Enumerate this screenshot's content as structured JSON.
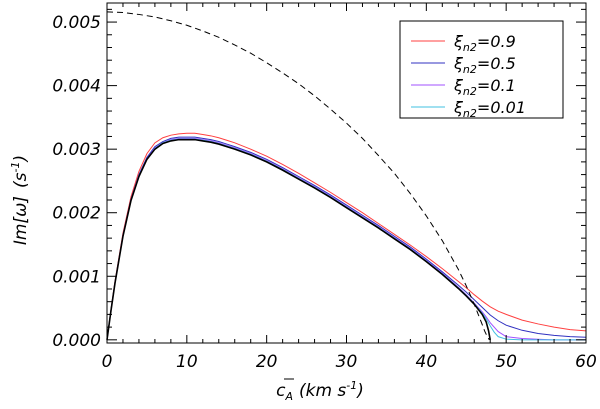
{
  "chart_data": {
    "type": "line",
    "title": "",
    "xlabel_main": "c",
    "xlabel_sub": "A",
    "xlabel_units": "(km s",
    "xlabel_units_sup": "-1",
    "xlabel_units_close": ")",
    "ylabel_main": "Im[ω]",
    "ylabel_units": "(s",
    "ylabel_units_sup": "-1",
    "ylabel_units_close": ")",
    "xlim": [
      0,
      60
    ],
    "ylim": [
      -5e-05,
      0.0053
    ],
    "grid": false,
    "legend_position": "top-right",
    "x_ticks": [
      "0",
      "10",
      "20",
      "30",
      "40",
      "50",
      "60"
    ],
    "y_ticks": [
      "0.000",
      "0.001",
      "0.002",
      "0.003",
      "0.004",
      "0.005"
    ],
    "series": [
      {
        "name": "ξn2=0.9",
        "label_base": "ξ",
        "label_sub": "n2",
        "label_value": "=0.9",
        "color": "#ff4040",
        "dash": "solid",
        "x": [
          0,
          0.5,
          1,
          2,
          3,
          4,
          5,
          6,
          7,
          8,
          9,
          10,
          11,
          12,
          13,
          14,
          15,
          16,
          18,
          20,
          22,
          24,
          26,
          28,
          30,
          32,
          34,
          36,
          38,
          40,
          42,
          44,
          45,
          46,
          47,
          48,
          49,
          50,
          52,
          54,
          56,
          58,
          60
        ],
        "y": [
          0.0,
          0.00048,
          0.00092,
          0.00168,
          0.00225,
          0.00265,
          0.00293,
          0.0031,
          0.00318,
          0.00322,
          0.00324,
          0.00325,
          0.00325,
          0.00323,
          0.00321,
          0.00318,
          0.00314,
          0.0031,
          0.003,
          0.00289,
          0.00276,
          0.00262,
          0.00247,
          0.00232,
          0.00216,
          0.002,
          0.00183,
          0.00166,
          0.00149,
          0.00131,
          0.00112,
          0.00092,
          0.00082,
          0.00071,
          0.00061,
          0.00052,
          0.00045,
          0.0004,
          0.00031,
          0.00025,
          0.0002,
          0.00016,
          0.00014
        ]
      },
      {
        "name": "ξn2=0.5",
        "label_base": "ξ",
        "label_sub": "n2",
        "label_value": "=0.5",
        "color": "#3030c0",
        "dash": "solid",
        "x": [
          0,
          0.5,
          1,
          2,
          3,
          4,
          5,
          6,
          7,
          8,
          9,
          10,
          11,
          12,
          13,
          14,
          15,
          16,
          18,
          20,
          22,
          24,
          26,
          28,
          30,
          32,
          34,
          36,
          38,
          40,
          42,
          44,
          45,
          46,
          47,
          48,
          49,
          50,
          52,
          54,
          56,
          58,
          60
        ],
        "y": [
          0.0,
          0.00047,
          0.0009,
          0.00165,
          0.00221,
          0.0026,
          0.00287,
          0.00304,
          0.00312,
          0.00317,
          0.00319,
          0.00319,
          0.00319,
          0.00317,
          0.00315,
          0.00312,
          0.00308,
          0.00304,
          0.00295,
          0.00284,
          0.00271,
          0.00257,
          0.00243,
          0.00228,
          0.00212,
          0.00196,
          0.0018,
          0.00163,
          0.00146,
          0.00127,
          0.00107,
          0.00086,
          0.00075,
          0.00063,
          0.00051,
          0.00039,
          0.0003,
          0.00023,
          0.00015,
          0.0001,
          7e-05,
          5e-05,
          4e-05
        ]
      },
      {
        "name": "ξn2=0.1",
        "label_base": "ξ",
        "label_sub": "n2",
        "label_value": "=0.1",
        "color": "#a050ff",
        "dash": "solid",
        "x": [
          0,
          0.5,
          1,
          2,
          3,
          4,
          5,
          6,
          7,
          8,
          9,
          10,
          11,
          12,
          13,
          14,
          15,
          16,
          18,
          20,
          22,
          24,
          26,
          28,
          30,
          32,
          34,
          36,
          38,
          40,
          42,
          44,
          45,
          46,
          47,
          47.5,
          48,
          49,
          50,
          52,
          54,
          56,
          58,
          60
        ],
        "y": [
          0.0,
          0.00047,
          0.0009,
          0.00164,
          0.0022,
          0.00258,
          0.00285,
          0.00302,
          0.0031,
          0.00315,
          0.00317,
          0.00317,
          0.00317,
          0.00315,
          0.00313,
          0.0031,
          0.00306,
          0.00302,
          0.00293,
          0.00282,
          0.00269,
          0.00255,
          0.00241,
          0.00226,
          0.0021,
          0.00194,
          0.00178,
          0.00161,
          0.00144,
          0.00125,
          0.00105,
          0.00083,
          0.00071,
          0.00058,
          0.00044,
          0.00036,
          0.00027,
          0.00013,
          5e-05,
          2e-05,
          1e-05,
          0.0,
          0.0,
          0.0
        ]
      },
      {
        "name": "ξn2=0.01",
        "label_base": "ξ",
        "label_sub": "n2",
        "label_value": "=0.01",
        "color": "#40c0e0",
        "dash": "solid",
        "x": [
          0,
          0.5,
          1,
          2,
          3,
          4,
          5,
          6,
          7,
          8,
          9,
          10,
          11,
          12,
          13,
          14,
          15,
          16,
          18,
          20,
          22,
          24,
          26,
          28,
          30,
          32,
          34,
          36,
          38,
          40,
          42,
          44,
          45,
          46,
          47,
          47.5,
          48,
          48.5,
          49,
          50,
          52,
          54,
          56,
          58,
          60
        ],
        "y": [
          0.0,
          0.00047,
          0.00089,
          0.00163,
          0.00219,
          0.00258,
          0.00284,
          0.00301,
          0.0031,
          0.00314,
          0.00316,
          0.00316,
          0.00316,
          0.00314,
          0.00312,
          0.00309,
          0.00305,
          0.00301,
          0.00292,
          0.00281,
          0.00268,
          0.00254,
          0.0024,
          0.00225,
          0.00209,
          0.00193,
          0.00177,
          0.0016,
          0.00143,
          0.00124,
          0.00104,
          0.00082,
          0.0007,
          0.00057,
          0.00042,
          0.00033,
          0.00022,
          0.00012,
          5e-05,
          1e-05,
          0.0,
          0.0,
          0.0,
          0.0,
          0.0
        ]
      },
      {
        "name": "",
        "color": "#000000",
        "dash": "solid",
        "x": [
          0,
          0.5,
          1,
          2,
          3,
          4,
          5,
          6,
          7,
          8,
          9,
          10,
          11,
          12,
          13,
          14,
          15,
          16,
          18,
          20,
          22,
          24,
          26,
          28,
          30,
          32,
          34,
          36,
          38,
          40,
          42,
          44,
          45,
          46,
          47,
          47.5,
          47.8,
          48
        ],
        "y": [
          0.0,
          0.00046,
          0.00089,
          0.00163,
          0.00219,
          0.00257,
          0.00284,
          0.003,
          0.00309,
          0.00313,
          0.00315,
          0.00315,
          0.00315,
          0.00313,
          0.00311,
          0.00308,
          0.00304,
          0.003,
          0.00291,
          0.0028,
          0.00267,
          0.00253,
          0.00239,
          0.00224,
          0.00208,
          0.00192,
          0.00176,
          0.00159,
          0.00142,
          0.00123,
          0.00103,
          0.00081,
          0.00069,
          0.00056,
          0.0004,
          0.00028,
          0.00014,
          0.0
        ]
      },
      {
        "name": "",
        "color": "#000000",
        "dash": "dashed",
        "x": [
          0,
          2,
          4,
          6,
          8,
          10,
          12,
          14,
          16,
          18,
          20,
          22,
          24,
          26,
          28,
          30,
          32,
          34,
          36,
          38,
          40,
          42,
          44,
          45,
          46,
          46.5,
          47,
          47.3,
          47.6,
          47.8,
          47.9
        ],
        "y": [
          0.00516,
          0.00515,
          0.00512,
          0.00508,
          0.00502,
          0.00495,
          0.00486,
          0.00476,
          0.00464,
          0.00451,
          0.00436,
          0.0042,
          0.00403,
          0.00384,
          0.00363,
          0.00341,
          0.00317,
          0.0029,
          0.00262,
          0.0023,
          0.00195,
          0.00156,
          0.00111,
          0.00085,
          0.00056,
          0.0004,
          0.00024,
          0.00014,
          6e-05,
          2e-05,
          0.0
        ]
      }
    ]
  }
}
